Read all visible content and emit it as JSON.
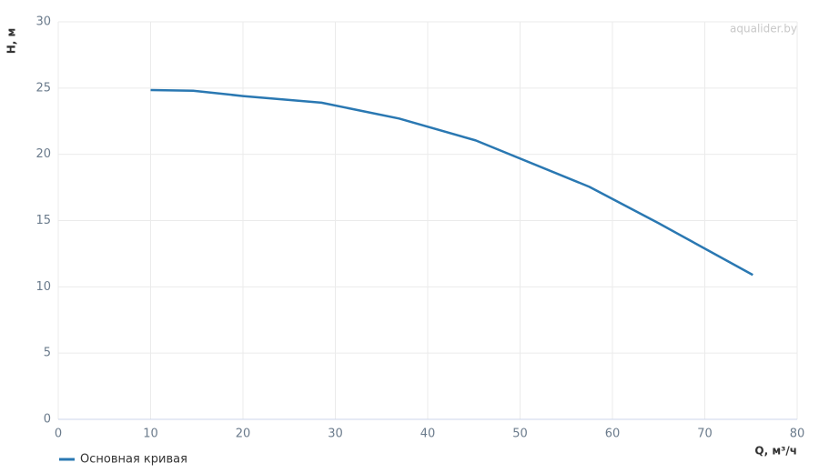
{
  "chart_data": {
    "type": "line",
    "x_label": "Q, м³/ч",
    "y_label": "H, м",
    "watermark": "aqualider.by",
    "x": [
      10,
      14.6,
      20,
      28.5,
      36.9,
      45.2,
      57.5,
      65,
      75.2
    ],
    "series": [
      {
        "name": "Основная кривая",
        "color": "#2a78b2",
        "values": [
          24.85,
          24.8,
          24.4,
          23.9,
          22.7,
          21.05,
          17.55,
          14.8,
          10.9
        ]
      }
    ],
    "xlim": [
      0,
      80
    ],
    "xticks": [
      0,
      10,
      20,
      30,
      40,
      50,
      60,
      70,
      80
    ],
    "ylim": [
      0,
      30
    ],
    "yticks": [
      0,
      5,
      10,
      15,
      20,
      25,
      30
    ],
    "grid": true
  }
}
